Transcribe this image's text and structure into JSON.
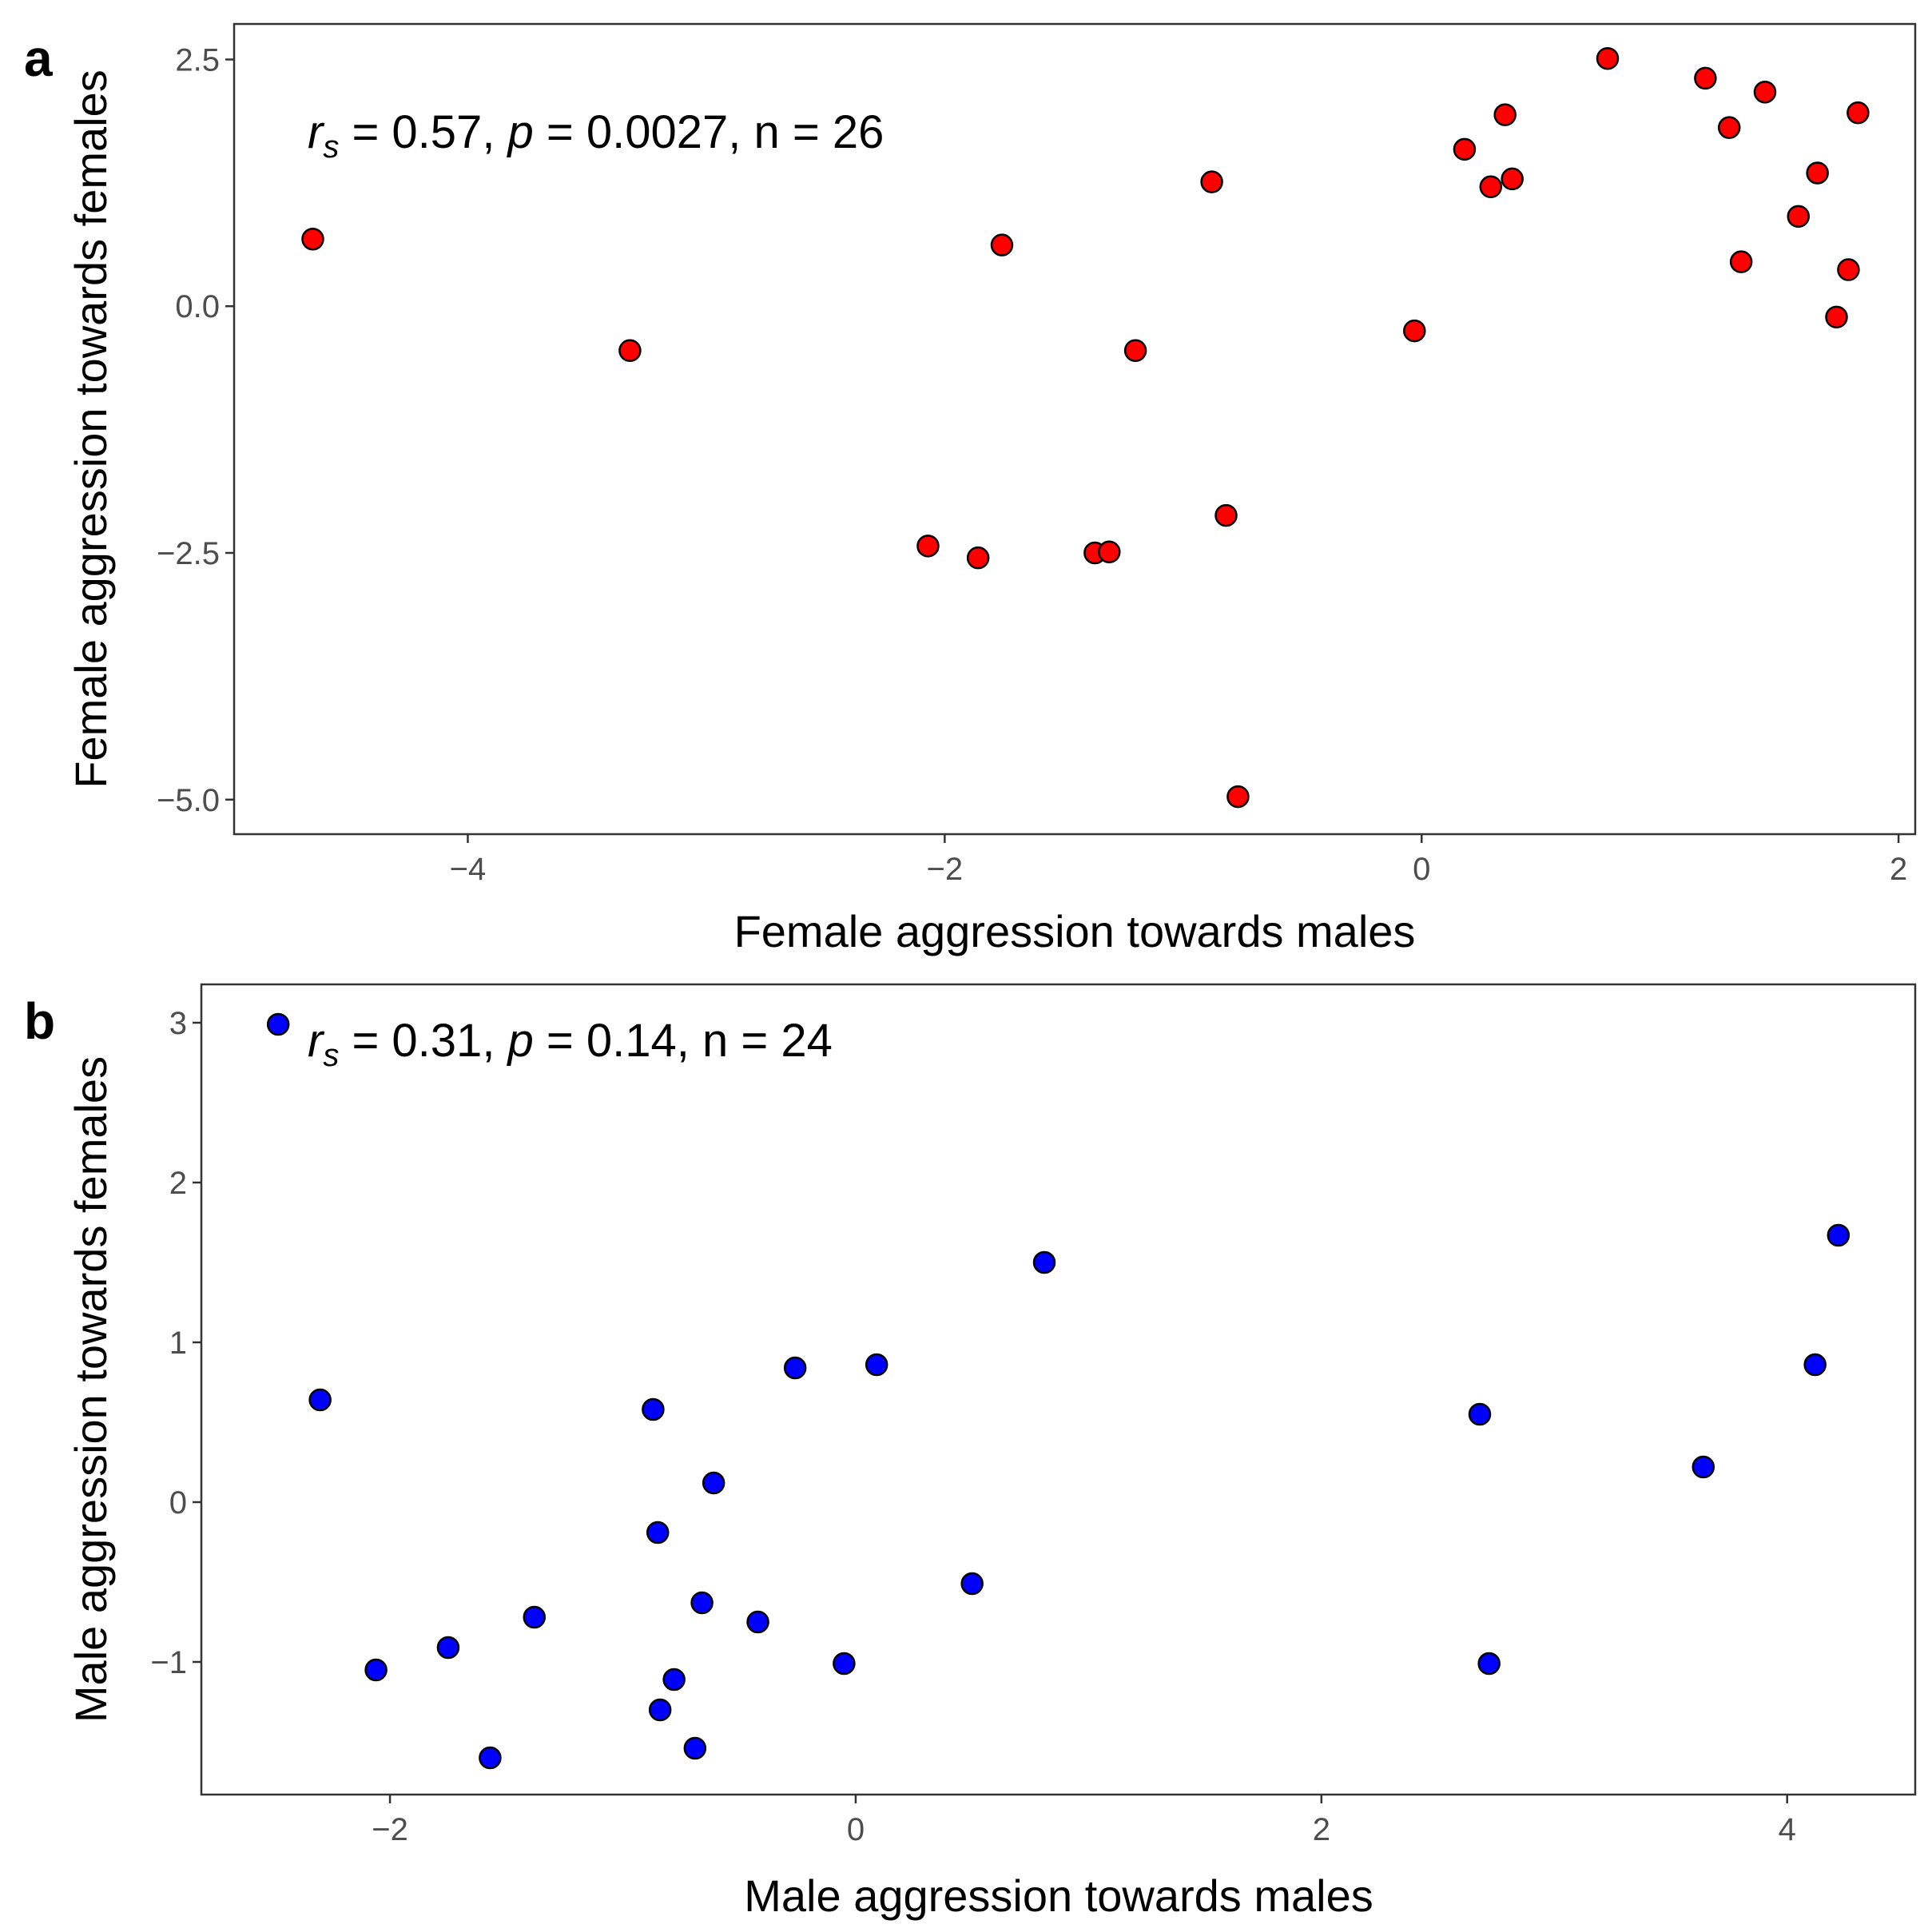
{
  "chart_data": [
    {
      "type": "scatter",
      "panel_label": "a",
      "xlabel": "Female aggression towards males",
      "ylabel": "Female aggression towards females",
      "xlim": [
        -4.98,
        2.07
      ],
      "ylim": [
        -5.35,
        2.86
      ],
      "xticks": [
        -4,
        -2,
        0,
        2
      ],
      "xtick_labels": [
        "−4",
        "−2",
        "0",
        "2"
      ],
      "yticks": [
        -5.0,
        -2.5,
        0.0,
        2.5
      ],
      "ytick_labels": [
        "−5.0",
        "−2.5",
        "0.0",
        "2.5"
      ],
      "color": "#ff0000",
      "grid": false,
      "annotation": {
        "r_symbol": "r",
        "r_subscript": "s",
        "r_value": " = 0.57, ",
        "p_symbol": "p",
        "p_value": " = 0.0027, n = 26"
      },
      "points": [
        {
          "x": -4.65,
          "y": 0.68
        },
        {
          "x": -3.32,
          "y": -0.45
        },
        {
          "x": -2.07,
          "y": -2.43
        },
        {
          "x": -1.86,
          "y": -2.55
        },
        {
          "x": -1.76,
          "y": 0.62
        },
        {
          "x": -1.37,
          "y": -2.5
        },
        {
          "x": -1.31,
          "y": -2.49
        },
        {
          "x": -1.2,
          "y": -0.45
        },
        {
          "x": -0.88,
          "y": 1.26
        },
        {
          "x": -0.82,
          "y": -2.12
        },
        {
          "x": -0.77,
          "y": -4.97
        },
        {
          "x": -0.03,
          "y": -0.25
        },
        {
          "x": 0.18,
          "y": 1.59
        },
        {
          "x": 0.29,
          "y": 1.21
        },
        {
          "x": 0.35,
          "y": 1.94
        },
        {
          "x": 0.38,
          "y": 1.29
        },
        {
          "x": 0.78,
          "y": 2.51
        },
        {
          "x": 1.19,
          "y": 2.31
        },
        {
          "x": 1.29,
          "y": 1.81
        },
        {
          "x": 1.34,
          "y": 0.45
        },
        {
          "x": 1.44,
          "y": 2.17
        },
        {
          "x": 1.58,
          "y": 0.91
        },
        {
          "x": 1.66,
          "y": 1.35
        },
        {
          "x": 1.74,
          "y": -0.11
        },
        {
          "x": 1.79,
          "y": 0.37
        },
        {
          "x": 1.83,
          "y": 1.96
        }
      ]
    },
    {
      "type": "scatter",
      "panel_label": "b",
      "xlabel": "Male aggression towards males",
      "ylabel": "Male aggression towards females",
      "xlim": [
        -2.81,
        4.55
      ],
      "ylim": [
        -1.83,
        3.24
      ],
      "xticks": [
        -2,
        0,
        2,
        4
      ],
      "xtick_labels": [
        "−2",
        "0",
        "2",
        "4"
      ],
      "yticks": [
        -1,
        0,
        1,
        2,
        3
      ],
      "ytick_labels": [
        "−1",
        "0",
        "1",
        "2",
        "3"
      ],
      "color": "#0000ff",
      "grid": false,
      "annotation": {
        "r_symbol": "r",
        "r_subscript": "s",
        "r_value": " = 0.31, ",
        "p_symbol": "p",
        "p_value": " = 0.14, n = 24"
      },
      "points": [
        {
          "x": -2.48,
          "y": 2.99
        },
        {
          "x": -2.3,
          "y": 0.64
        },
        {
          "x": -2.06,
          "y": -1.05
        },
        {
          "x": -1.75,
          "y": -0.91
        },
        {
          "x": -1.57,
          "y": -1.6
        },
        {
          "x": -1.38,
          "y": -0.72
        },
        {
          "x": -0.87,
          "y": 0.58
        },
        {
          "x": -0.85,
          "y": -0.19
        },
        {
          "x": -0.84,
          "y": -1.3
        },
        {
          "x": -0.78,
          "y": -1.11
        },
        {
          "x": -0.69,
          "y": -1.54
        },
        {
          "x": -0.66,
          "y": -0.63
        },
        {
          "x": -0.61,
          "y": 0.12
        },
        {
          "x": -0.42,
          "y": -0.75
        },
        {
          "x": -0.26,
          "y": 0.84
        },
        {
          "x": -0.05,
          "y": -1.01
        },
        {
          "x": 0.09,
          "y": 0.86
        },
        {
          "x": 0.5,
          "y": -0.51
        },
        {
          "x": 0.81,
          "y": 1.5
        },
        {
          "x": 2.68,
          "y": 0.55
        },
        {
          "x": 2.72,
          "y": -1.01
        },
        {
          "x": 3.64,
          "y": 0.22
        },
        {
          "x": 4.12,
          "y": 0.86
        },
        {
          "x": 4.22,
          "y": 1.67
        }
      ]
    }
  ]
}
